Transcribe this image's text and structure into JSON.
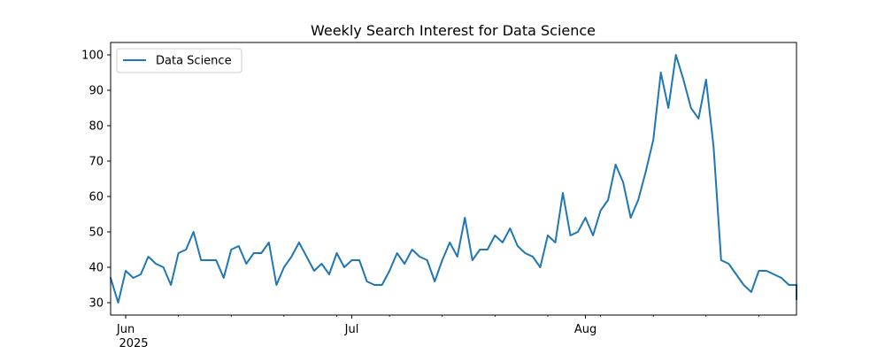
{
  "chart_data": {
    "type": "line",
    "title": "Weekly Search Interest for Data Science",
    "xlabel": "",
    "ylabel": "",
    "x_start": "2025-05-30",
    "x_end": "2025-08-29",
    "xlim": [
      "2025-05-30",
      "2025-08-29"
    ],
    "ylim": [
      26.5,
      103.5
    ],
    "grid": false,
    "legend_position": "upper left",
    "x_ticks": [
      {
        "date": "2025-06-01",
        "label": "Jun",
        "sublabel": "2025"
      },
      {
        "date": "2025-07-01",
        "label": "Jul",
        "sublabel": ""
      },
      {
        "date": "2025-08-01",
        "label": "Aug",
        "sublabel": ""
      }
    ],
    "y_ticks": [
      30,
      40,
      50,
      60,
      70,
      80,
      90,
      100
    ],
    "series": [
      {
        "name": "Data Science",
        "color": "#1f77b4",
        "points": [
          [
            "2025-05-30",
            37
          ],
          [
            "2025-05-31",
            30
          ],
          [
            "2025-06-01",
            39
          ],
          [
            "2025-06-02",
            37
          ],
          [
            "2025-06-03",
            38
          ],
          [
            "2025-06-04",
            43
          ],
          [
            "2025-06-05",
            41
          ],
          [
            "2025-06-06",
            40
          ],
          [
            "2025-06-07",
            35
          ],
          [
            "2025-06-08",
            44
          ],
          [
            "2025-06-09",
            45
          ],
          [
            "2025-06-10",
            50
          ],
          [
            "2025-06-11",
            42
          ],
          [
            "2025-06-12",
            42
          ],
          [
            "2025-06-13",
            42
          ],
          [
            "2025-06-14",
            37
          ],
          [
            "2025-06-15",
            45
          ],
          [
            "2025-06-16",
            46
          ],
          [
            "2025-06-17",
            41
          ],
          [
            "2025-06-18",
            44
          ],
          [
            "2025-06-19",
            44
          ],
          [
            "2025-06-20",
            47
          ],
          [
            "2025-06-21",
            35
          ],
          [
            "2025-06-22",
            40
          ],
          [
            "2025-06-23",
            43
          ],
          [
            "2025-06-24",
            47
          ],
          [
            "2025-06-25",
            43
          ],
          [
            "2025-06-26",
            39
          ],
          [
            "2025-06-27",
            41
          ],
          [
            "2025-06-28",
            38
          ],
          [
            "2025-06-29",
            44
          ],
          [
            "2025-06-30",
            40
          ],
          [
            "2025-07-01",
            42
          ],
          [
            "2025-07-02",
            42
          ],
          [
            "2025-07-03",
            36
          ],
          [
            "2025-07-04",
            35
          ],
          [
            "2025-07-05",
            35
          ],
          [
            "2025-07-06",
            39
          ],
          [
            "2025-07-07",
            44
          ],
          [
            "2025-07-08",
            41
          ],
          [
            "2025-07-09",
            45
          ],
          [
            "2025-07-10",
            43
          ],
          [
            "2025-07-11",
            42
          ],
          [
            "2025-07-12",
            36
          ],
          [
            "2025-07-13",
            42
          ],
          [
            "2025-07-14",
            47
          ],
          [
            "2025-07-15",
            43
          ],
          [
            "2025-07-16",
            54
          ],
          [
            "2025-07-17",
            42
          ],
          [
            "2025-07-18",
            45
          ],
          [
            "2025-07-19",
            45
          ],
          [
            "2025-07-20",
            49
          ],
          [
            "2025-07-21",
            47
          ],
          [
            "2025-07-22",
            51
          ],
          [
            "2025-07-23",
            46
          ],
          [
            "2025-07-24",
            44
          ],
          [
            "2025-07-25",
            43
          ],
          [
            "2025-07-26",
            40
          ],
          [
            "2025-07-27",
            49
          ],
          [
            "2025-07-28",
            47
          ],
          [
            "2025-07-29",
            61
          ],
          [
            "2025-07-30",
            49
          ],
          [
            "2025-07-31",
            50
          ],
          [
            "2025-08-01",
            54
          ],
          [
            "2025-08-02",
            49
          ],
          [
            "2025-08-03",
            56
          ],
          [
            "2025-08-04",
            59
          ],
          [
            "2025-08-05",
            69
          ],
          [
            "2025-08-06",
            64
          ],
          [
            "2025-08-07",
            54
          ],
          [
            "2025-08-08",
            59
          ],
          [
            "2025-08-09",
            67
          ],
          [
            "2025-08-10",
            76
          ],
          [
            "2025-08-11",
            95
          ],
          [
            "2025-08-12",
            85
          ],
          [
            "2025-08-13",
            100
          ],
          [
            "2025-08-14",
            93
          ],
          [
            "2025-08-15",
            85
          ],
          [
            "2025-08-16",
            82
          ],
          [
            "2025-08-17",
            93
          ],
          [
            "2025-08-18",
            74
          ],
          [
            "2025-08-19",
            42
          ],
          [
            "2025-08-20",
            41
          ],
          [
            "2025-08-21",
            38
          ],
          [
            "2025-08-22",
            35
          ],
          [
            "2025-08-23",
            33
          ],
          [
            "2025-08-24",
            39
          ],
          [
            "2025-08-25",
            39
          ],
          [
            "2025-08-26",
            38
          ],
          [
            "2025-08-27",
            37
          ],
          [
            "2025-08-28",
            35
          ],
          [
            "2025-08-29",
            35
          ],
          [
            "2025-08-30",
            31
          ]
        ]
      }
    ]
  }
}
